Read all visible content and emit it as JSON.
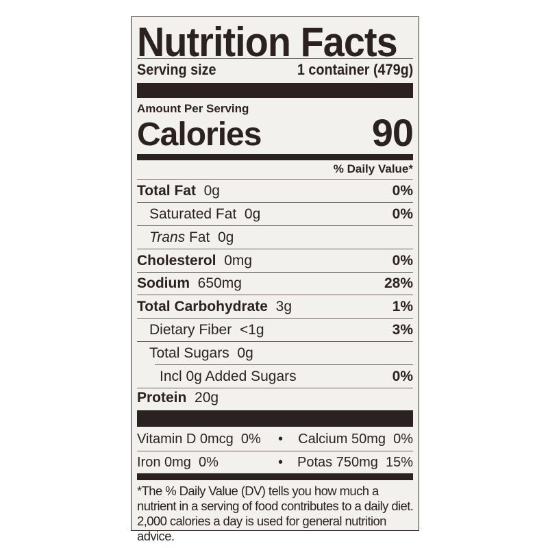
{
  "title": "Nutrition Facts",
  "serving": {
    "label": "Serving size",
    "value": "1 container (479g)"
  },
  "amount_per_serving": "Amount Per Serving",
  "calories": {
    "label": "Calories",
    "value": "90"
  },
  "daily_value_header": "% Daily Value*",
  "nutrients": [
    {
      "name": "Total Fat",
      "amount": "0g",
      "dv": "0%"
    },
    {
      "name": "Saturated Fat",
      "amount": "0g",
      "dv": "0%"
    },
    {
      "name": "Trans",
      "name_suffix": " Fat",
      "amount": "0g",
      "dv": ""
    },
    {
      "name": "Cholesterol",
      "amount": "0mg",
      "dv": "0%"
    },
    {
      "name": "Sodium",
      "amount": "650mg",
      "dv": "28%"
    },
    {
      "name": "Total Carbohydrate",
      "amount": "3g",
      "dv": "1%"
    },
    {
      "name": "Dietary Fiber",
      "amount": "<1g",
      "dv": "3%"
    },
    {
      "name": "Total Sugars",
      "amount": "0g",
      "dv": ""
    },
    {
      "name": "Incl 0g Added Sugars",
      "amount": "",
      "dv": "0%"
    },
    {
      "name": "Protein",
      "amount": "20g",
      "dv": ""
    }
  ],
  "vitamins": [
    {
      "left": "Vitamin D 0mcg  0%",
      "bullet": "•",
      "right": "Calcium 50mg  0%"
    },
    {
      "left": "Iron 0mg  0%",
      "bullet": "•",
      "right": "Potas 750mg  15%"
    }
  ],
  "footnote": "*The % Daily Value (DV) tells you how much a nutrient in a serving of food contributes to a daily diet. 2,000 calories a day is used for general nutrition advice.",
  "colors": {
    "ink": "#2b2122",
    "panel": "#f3f1ee"
  }
}
